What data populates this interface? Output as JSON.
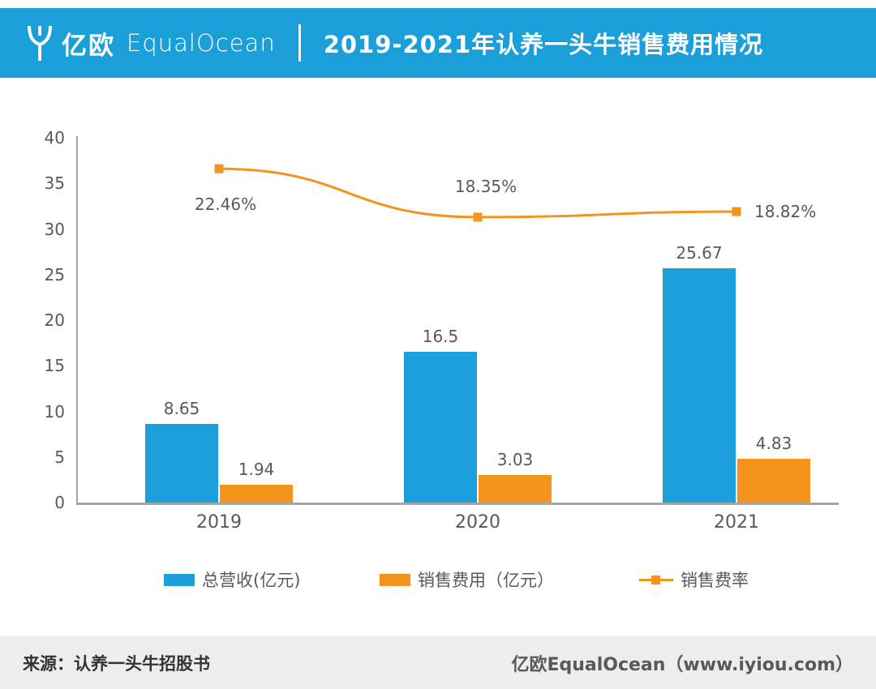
{
  "header": {
    "logo_cn": "亿欧",
    "logo_en": "EqualOcean",
    "title": "2019-2021年认养一头牛销售费用情况"
  },
  "chart_data": {
    "type": "bar",
    "categories": [
      "2019",
      "2020",
      "2021"
    ],
    "series": [
      {
        "name": "总营收(亿元)",
        "type": "bar",
        "color": "#1CA0DC",
        "values": [
          8.65,
          16.5,
          25.67
        ]
      },
      {
        "name": "销售费用（亿元）",
        "type": "bar",
        "color": "#F5941D",
        "values": [
          1.94,
          3.03,
          4.83
        ]
      },
      {
        "name": "销售费率",
        "type": "line",
        "color": "#F5941D",
        "values": [
          22.46,
          18.35,
          18.82
        ],
        "labels": [
          "22.46%",
          "18.35%",
          "18.82%"
        ]
      }
    ],
    "title": "2019-2021年认养一头牛销售费用情况",
    "xlabel": "",
    "ylabel": "",
    "ylim": [
      0,
      40
    ],
    "ytick_step": 5,
    "grid": false,
    "legend_position": "bottom"
  },
  "footer": {
    "source": "来源：认养一头牛招股书",
    "site": "亿欧EqualOcean（www.iyiou.com）"
  }
}
